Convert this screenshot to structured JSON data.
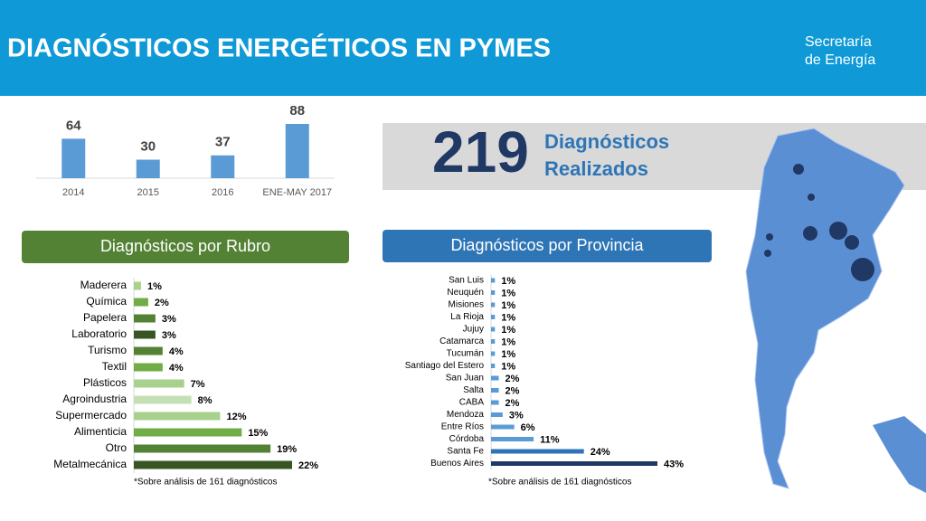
{
  "header": {
    "title": "DIAGNÓSTICOS ENERGÉTICOS EN PYMES",
    "brand": [
      "Secretaría",
      "de Energía"
    ]
  },
  "highlight": {
    "number": "219",
    "text": [
      "Diagnósticos",
      "Realizados"
    ]
  },
  "chart_data": [
    {
      "type": "bar",
      "categories": [
        "2014",
        "2015",
        "2016",
        "ENE-MAY 2017"
      ],
      "values": [
        64,
        30,
        37,
        88
      ],
      "color": "#5b9bd5"
    },
    {
      "type": "hbar",
      "title": "Diagnósticos por Rubro",
      "note": "*Sobre  análisis de 161 diagnósticos",
      "categories": [
        "Maderera",
        "Química",
        "Papelera",
        "Laboratorio",
        "Turismo",
        "Textil",
        "Plásticos",
        "Agroindustria",
        "Supermercado",
        "Alimenticia",
        "Otro",
        "Metalmecánica"
      ],
      "values": [
        1,
        2,
        3,
        3,
        4,
        4,
        7,
        8,
        12,
        15,
        19,
        22
      ],
      "value_labels": [
        "1%",
        "2%",
        "3%",
        "3%",
        "4%",
        "4%",
        "7%",
        "8%",
        "12%",
        "15%",
        "19%",
        "22%"
      ],
      "colors": [
        "#a9d18e",
        "#70ad47",
        "#548235",
        "#375623",
        "#548235",
        "#70ad47",
        "#a9d18e",
        "#c5e0b4",
        "#a9d18e",
        "#70ad47",
        "#548235",
        "#375623"
      ]
    },
    {
      "type": "hbar",
      "title": "Diagnósticos por Provincia",
      "note": "*Sobre  análisis de 161 diagnósticos",
      "categories": [
        "San Luis",
        "Neuquén",
        "Misiones",
        "La Rioja",
        "Jujuy",
        "Catamarca",
        "Tucumán",
        "Santiago del Estero",
        "San Juan",
        "Salta",
        "CABA",
        "Mendoza",
        "Entre Ríos",
        "Córdoba",
        "Santa Fe",
        "Buenos Aires"
      ],
      "values": [
        1,
        1,
        1,
        1,
        1,
        1,
        1,
        1,
        2,
        2,
        2,
        3,
        6,
        11,
        24,
        43
      ],
      "value_labels": [
        "1%",
        "1%",
        "1%",
        "1%",
        "1%",
        "1%",
        "1%",
        "1%",
        "2%",
        "2%",
        "2%",
        "3%",
        "6%",
        "11%",
        "24%",
        "43%"
      ],
      "colors": [
        "#5b9bd5",
        "#5b9bd5",
        "#5b9bd5",
        "#5b9bd5",
        "#5b9bd5",
        "#5b9bd5",
        "#5b9bd5",
        "#5b9bd5",
        "#5b9bd5",
        "#5b9bd5",
        "#5b9bd5",
        "#5b9bd5",
        "#5b9bd5",
        "#5b9bd5",
        "#2e75b6",
        "#1f3864"
      ]
    }
  ]
}
